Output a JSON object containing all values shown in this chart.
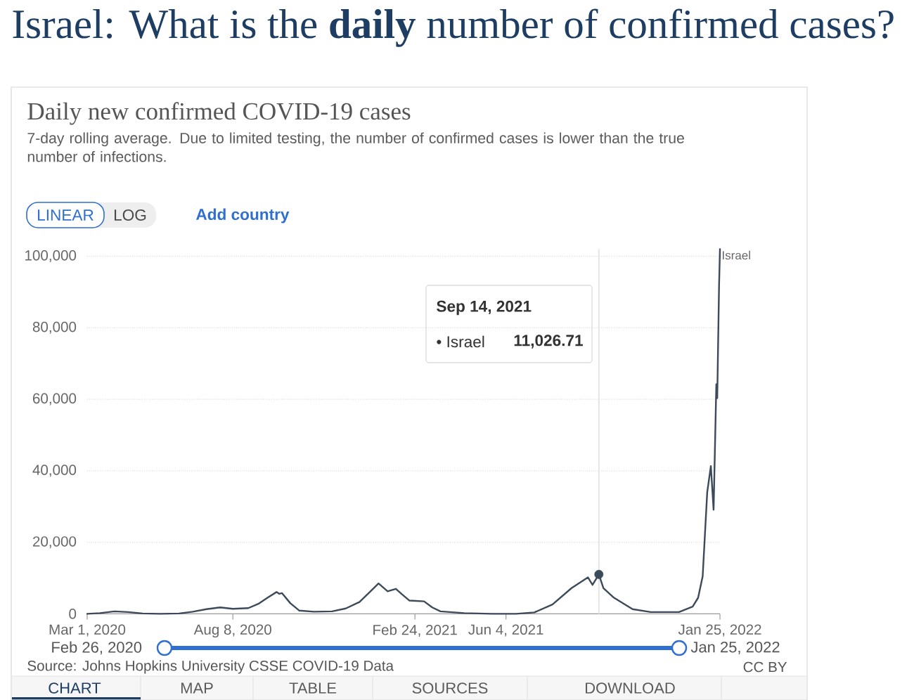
{
  "chart_data": {
    "type": "line",
    "title": "Israel: What is the **daily** number of confirmed cases?",
    "subtitle": "Daily new confirmed COVID-19 cases",
    "x": [
      "2020-03-01",
      "2020-03-15",
      "2020-03-31",
      "2020-04-15",
      "2020-05-01",
      "2020-05-20",
      "2020-06-10",
      "2020-06-25",
      "2020-07-10",
      "2020-07-25",
      "2020-08-08",
      "2020-08-25",
      "2020-09-05",
      "2020-09-15",
      "2020-09-25",
      "2020-09-28",
      "2020-10-01",
      "2020-10-10",
      "2020-10-20",
      "2020-11-05",
      "2020-11-25",
      "2020-12-10",
      "2020-12-25",
      "2021-01-05",
      "2021-01-15",
      "2021-01-25",
      "2021-02-03",
      "2021-02-10",
      "2021-02-18",
      "2021-03-06",
      "2021-03-15",
      "2021-03-24",
      "2021-04-19",
      "2021-05-20",
      "2021-06-15",
      "2021-07-05",
      "2021-07-25",
      "2021-08-15",
      "2021-09-02",
      "2021-09-07",
      "2021-09-14",
      "2021-09-19",
      "2021-09-30",
      "2021-10-21",
      "2021-11-10",
      "2021-12-11",
      "2021-12-26",
      "2022-01-01",
      "2022-01-06",
      "2022-01-11",
      "2022-01-15",
      "2022-01-18",
      "2022-01-20",
      "2022-01-21",
      "2022-01-22",
      "2022-01-24",
      "2022-01-25"
    ],
    "series": [
      {
        "name": "Israel",
        "color": "#3c4a5a",
        "values": [
          0,
          200,
          700,
          500,
          100,
          0,
          100,
          600,
          1300,
          1800,
          1400,
          1600,
          2800,
          4500,
          6100,
          5600,
          5800,
          3000,
          900,
          600,
          700,
          1500,
          3300,
          6000,
          8500,
          6300,
          7000,
          5400,
          3700,
          3500,
          1800,
          700,
          200,
          0,
          0,
          400,
          2600,
          7200,
          10200,
          8100,
          11026.71,
          7200,
          4600,
          1300,
          500,
          500,
          2000,
          4500,
          10500,
          34000,
          41300,
          29100,
          52400,
          64200,
          60300,
          91700,
          102000
        ]
      },
      {
        "type": "scatter",
        "color": "#3c4a5a",
        "x": [
          "2021-09-14"
        ],
        "values": [
          11026.71
        ]
      }
    ],
    "xlim": [
      "2020-03-01",
      "2022-01-25"
    ],
    "ylim": [
      0,
      102000
    ],
    "xticks": [
      {
        "value": "2020-03-01",
        "label": "Mar 1, 2020"
      },
      {
        "value": "2020-08-08",
        "label": "Aug 8, 2020"
      },
      {
        "value": "2021-02-24",
        "label": "Feb 24, 2021"
      },
      {
        "value": "2021-06-04",
        "label": "Jun 4, 2021"
      },
      {
        "value": "2022-01-25",
        "label": "Jan 25, 2022"
      }
    ],
    "yticks": [
      0,
      {
        "value": 20000,
        "label": "20,000"
      },
      {
        "value": 40000,
        "label": "40,000"
      },
      {
        "value": 60000,
        "label": "60,000"
      },
      {
        "value": 80000,
        "label": "80,000"
      },
      {
        "value": 100000,
        "label": "100,000"
      }
    ],
    "grid": "y",
    "ref_lines": [
      {
        "axis": "x",
        "value": "2021-09-14",
        "color": "#e3e3e3"
      }
    ],
    "annotations": [
      "7-day rolling average. Due to limited testing, the number of confirmed cases is lower than the true number of infections.",
      "LINEAR",
      "LOG",
      "Add country",
      "Sep 14, 2021",
      "• Israel",
      "11,026.71",
      "Feb 26, 2020",
      "Jan 25, 2022",
      "Source: Johns Hopkins University CSSE COVID-19 Data",
      "CC BY",
      "CHART",
      "MAP",
      "TABLE",
      "SOURCES",
      "DOWNLOAD"
    ]
  }
}
